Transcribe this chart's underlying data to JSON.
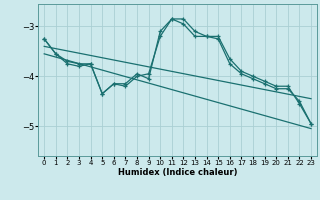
{
  "xlabel": "Humidex (Indice chaleur)",
  "bg_color": "#cce9ec",
  "grid_color": "#aacfd4",
  "line_color": "#1a7070",
  "xlim": [
    -0.5,
    23.5
  ],
  "ylim": [
    -5.6,
    -2.55
  ],
  "yticks": [
    -5,
    -4,
    -3
  ],
  "xticks": [
    0,
    1,
    2,
    3,
    4,
    5,
    6,
    7,
    8,
    9,
    10,
    11,
    12,
    13,
    14,
    15,
    16,
    17,
    18,
    19,
    20,
    21,
    22,
    23
  ],
  "line1_x": [
    0,
    1,
    2,
    3,
    4,
    5,
    6,
    7,
    8,
    9,
    10,
    11,
    12,
    13,
    14,
    15,
    16,
    17,
    18,
    19,
    20,
    21,
    22,
    23
  ],
  "line1_y": [
    -3.25,
    -3.55,
    -3.75,
    -3.8,
    -3.75,
    -4.35,
    -4.15,
    -4.15,
    -3.95,
    -4.05,
    -3.1,
    -2.85,
    -2.85,
    -3.1,
    -3.2,
    -3.25,
    -3.75,
    -3.95,
    -4.05,
    -4.15,
    -4.25,
    -4.25,
    -4.5,
    -4.95
  ],
  "line2_x": [
    0,
    1,
    2,
    3,
    4,
    5,
    6,
    7,
    8,
    9,
    10,
    11,
    12,
    13,
    14,
    15,
    16,
    17,
    18,
    19,
    20,
    21,
    22,
    23
  ],
  "line2_y": [
    -3.25,
    -3.55,
    -3.7,
    -3.75,
    -3.75,
    -4.35,
    -4.15,
    -4.2,
    -4.0,
    -3.95,
    -3.2,
    -2.85,
    -2.95,
    -3.2,
    -3.2,
    -3.2,
    -3.65,
    -3.9,
    -4.0,
    -4.1,
    -4.2,
    -4.2,
    -4.55,
    -4.95
  ],
  "line3_x": [
    0,
    23
  ],
  "line3_y": [
    -3.4,
    -4.45
  ],
  "line4_x": [
    0,
    23
  ],
  "line4_y": [
    -3.55,
    -5.05
  ]
}
